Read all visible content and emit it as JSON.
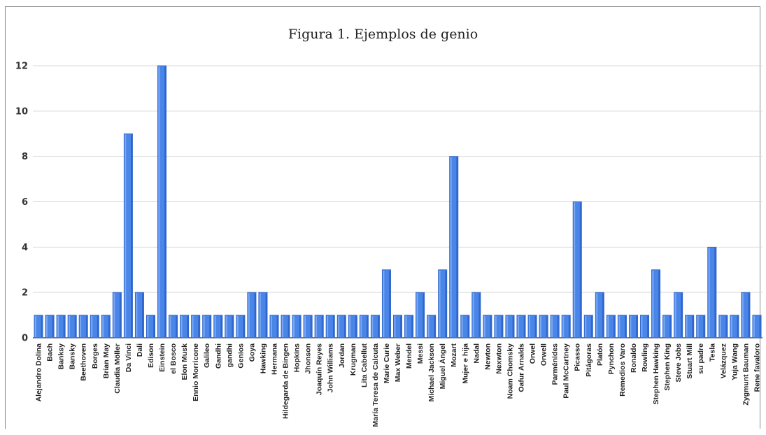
{
  "chart_data": {
    "type": "bar",
    "title": "Figura 1. Ejemplos de genio",
    "xlabel": "",
    "ylabel": "",
    "ylim": [
      0,
      12
    ],
    "yticks": [
      0,
      2,
      4,
      6,
      8,
      10,
      12
    ],
    "grid": true,
    "bar_color": "#4a86e8",
    "categories": [
      "Alejandro Dolina",
      "Bach",
      "Banksy",
      "Bansky",
      "Beethoven",
      "Borges",
      "Brian May",
      "Claudia Möller",
      "Da Vinci",
      "Dali",
      "Edison",
      "Einstein",
      "el Bosco",
      "Elon Musk",
      "Ennio Morricone",
      "Galileo",
      "Gandhi",
      "gandhi",
      "Genios",
      "Goya",
      "Hawking",
      "Hermana",
      "Hildegarda de Bingen",
      "Hopkins",
      "Jhonson",
      "Joaquín Reyes",
      "John Williams",
      "Jordan",
      "Krugman",
      "Lita Cabellut",
      "María Teresa de Calcuta",
      "Marie Curie",
      "Max Weber",
      "Mendel",
      "Messi",
      "Michael Jackson",
      "Miguel Ángel",
      "Mozart",
      "Mujer e hija",
      "Nadal",
      "Newton",
      "Nexwton",
      "Noam Chomsky",
      "Oafur Arnalds",
      "Orwel",
      "Orwell",
      "Parménides",
      "Paul McCartney",
      "Picasso",
      "Pitágoras",
      "Platón",
      "Pynchon",
      "Remedios Varo",
      "Ronaldo",
      "Rowling",
      "Stephen Hawking",
      "Stephen King",
      "Steve Jobs",
      "Stuart Mill",
      "su padre",
      "Tesla",
      "Velázquez",
      "Yuja Wang",
      "Zygmunt Bauman",
      "Rene favaloro"
    ],
    "values": [
      1,
      1,
      1,
      1,
      1,
      1,
      1,
      2,
      9,
      2,
      1,
      12,
      1,
      1,
      1,
      1,
      1,
      1,
      1,
      2,
      2,
      1,
      1,
      1,
      1,
      1,
      1,
      1,
      1,
      1,
      1,
      3,
      1,
      1,
      2,
      1,
      3,
      8,
      1,
      2,
      1,
      1,
      1,
      1,
      1,
      1,
      1,
      1,
      6,
      1,
      2,
      1,
      1,
      1,
      1,
      3,
      1,
      2,
      1,
      1,
      4,
      1,
      1,
      2,
      1
    ]
  }
}
